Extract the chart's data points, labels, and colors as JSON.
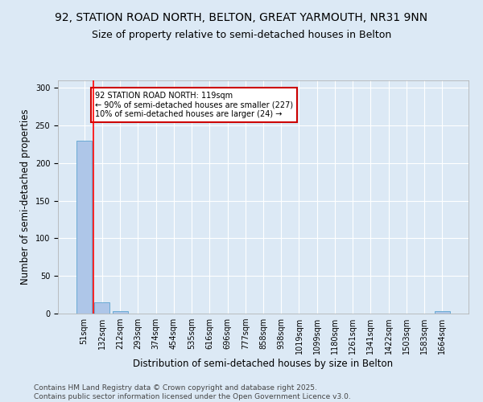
{
  "title": "92, STATION ROAD NORTH, BELTON, GREAT YARMOUTH, NR31 9NN",
  "subtitle": "Size of property relative to semi-detached houses in Belton",
  "xlabel": "Distribution of semi-detached houses by size in Belton",
  "ylabel": "Number of semi-detached properties",
  "categories": [
    "51sqm",
    "132sqm",
    "212sqm",
    "293sqm",
    "374sqm",
    "454sqm",
    "535sqm",
    "616sqm",
    "696sqm",
    "777sqm",
    "858sqm",
    "938sqm",
    "1019sqm",
    "1099sqm",
    "1180sqm",
    "1261sqm",
    "1341sqm",
    "1422sqm",
    "1503sqm",
    "1583sqm",
    "1664sqm"
  ],
  "values": [
    230,
    15,
    3,
    0,
    0,
    0,
    0,
    0,
    0,
    0,
    0,
    0,
    0,
    0,
    0,
    0,
    0,
    0,
    0,
    0,
    3
  ],
  "bar_color": "#aec6e8",
  "bar_edge_color": "#6aaad4",
  "red_line_x": 0.5,
  "annotation_text": "92 STATION ROAD NORTH: 119sqm\n← 90% of semi-detached houses are smaller (227)\n10% of semi-detached houses are larger (24) →",
  "annotation_box_color": "#ffffff",
  "annotation_box_edge": "#cc0000",
  "annotation_text_color": "#000000",
  "ylim": [
    0,
    310
  ],
  "yticks": [
    0,
    50,
    100,
    150,
    200,
    250,
    300
  ],
  "background_color": "#dce9f5",
  "plot_background": "#dce9f5",
  "footer_line1": "Contains HM Land Registry data © Crown copyright and database right 2025.",
  "footer_line2": "Contains public sector information licensed under the Open Government Licence v3.0.",
  "title_fontsize": 10,
  "subtitle_fontsize": 9,
  "tick_fontsize": 7,
  "label_fontsize": 8.5,
  "footer_fontsize": 6.5
}
